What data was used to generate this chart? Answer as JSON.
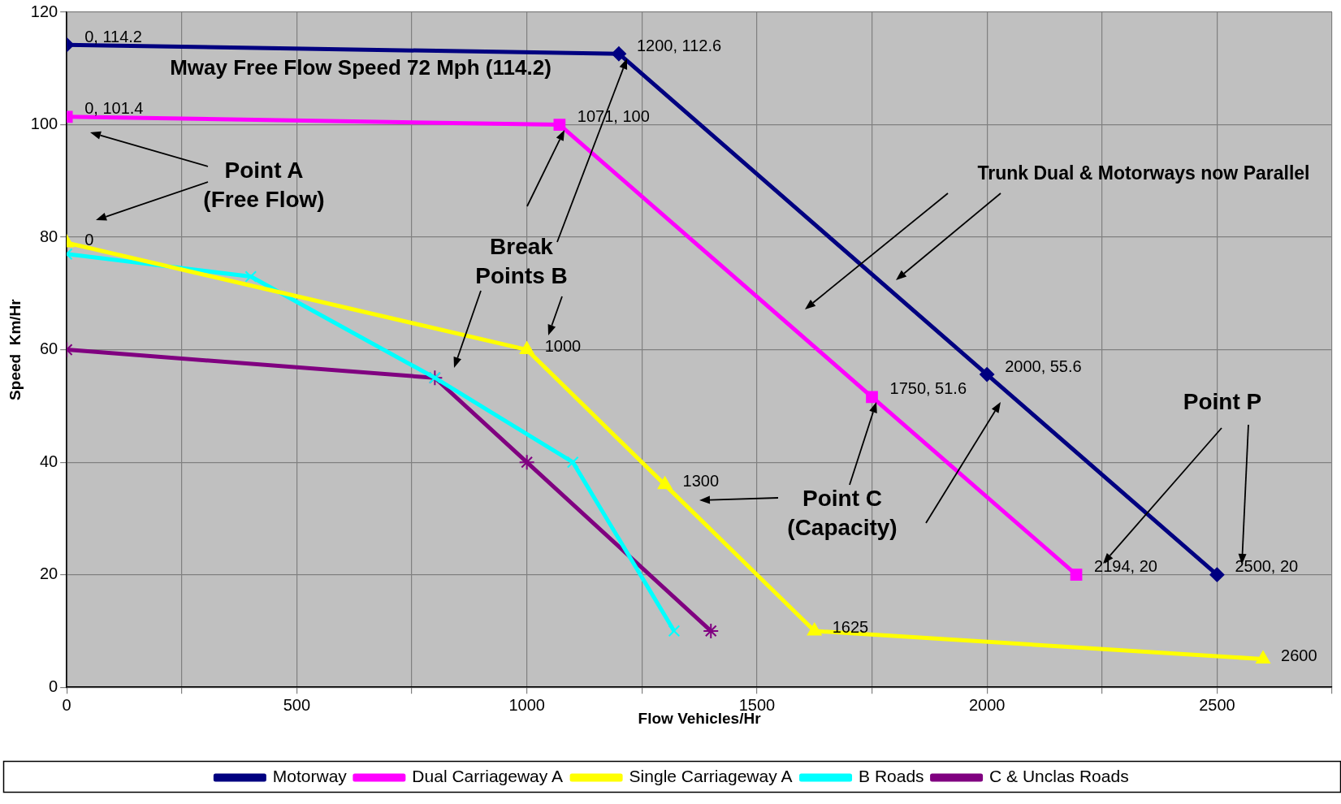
{
  "chart_data": {
    "type": "line",
    "xlabel": "Flow Vehicles/Hr",
    "ylabel": "Speed  Km/Hr",
    "xlim": [
      0,
      2750
    ],
    "ylim": [
      0,
      120
    ],
    "xticks": [
      0,
      {
        "value": 250,
        "label": null
      },
      500,
      {
        "value": 750,
        "label": null
      },
      1000,
      {
        "value": 1250,
        "label": null
      },
      1500,
      {
        "value": 1750,
        "label": null
      },
      2000,
      {
        "value": 2250,
        "label": null
      },
      2500,
      {
        "value": 2750,
        "label": null
      }
    ],
    "yticks": [
      0,
      20,
      40,
      60,
      80,
      100,
      120
    ],
    "grid": true,
    "legend": "bottom",
    "line_style": "solid",
    "series": [
      {
        "name": "Motorway",
        "color": "#000080",
        "marker": "diamond",
        "x": [
          0,
          1200,
          2000,
          2500
        ],
        "values": [
          114.2,
          112.6,
          55.6,
          20
        ],
        "value_labels": [
          "0, 114.2",
          "1200, 112.6",
          "2000, 55.6",
          "2500, 20"
        ]
      },
      {
        "name": "Dual Carriageway A",
        "color": "#ff00ff",
        "marker": "square",
        "x": [
          0,
          1071,
          1750,
          2194
        ],
        "values": [
          101.4,
          100,
          51.6,
          20
        ],
        "value_labels": [
          "0, 101.4",
          "1071, 100",
          "1750, 51.6",
          "2194, 20"
        ]
      },
      {
        "name": "Single Carriageway A",
        "color": "#ffff00",
        "marker": "triangle",
        "x": [
          0,
          1000,
          1300,
          1625,
          2600
        ],
        "values": [
          79,
          60,
          36,
          10,
          5
        ]
      },
      {
        "name": "B Roads",
        "color": "#00ffff",
        "marker": "cross",
        "x": [
          0,
          400,
          800,
          1100,
          1320
        ],
        "values": [
          77,
          73,
          55,
          40,
          10
        ]
      },
      {
        "name": "C & Unclas Roads",
        "color": "#800080",
        "marker": "cross",
        "x": [
          0,
          800,
          1000,
          1400
        ],
        "values": [
          60,
          55,
          40,
          10
        ]
      }
    ],
    "annotations": [
      "Mway Free Flow Speed 72 Mph (114.2)",
      "Point A (Free Flow)",
      "Break Points B",
      "Trunk Dual & Motorways now Parallel",
      "Point C (Capacity)",
      "Point P",
      {
        "text": "0",
        "x": 0,
        "y": 79
      },
      {
        "text": "1000",
        "x": 1000,
        "y": 60
      },
      {
        "text": "1300",
        "x": 1300,
        "y": 36
      },
      {
        "text": "1625",
        "x": 1625,
        "y": 10
      },
      {
        "text": "2600",
        "x": 2600,
        "y": 5
      }
    ]
  }
}
